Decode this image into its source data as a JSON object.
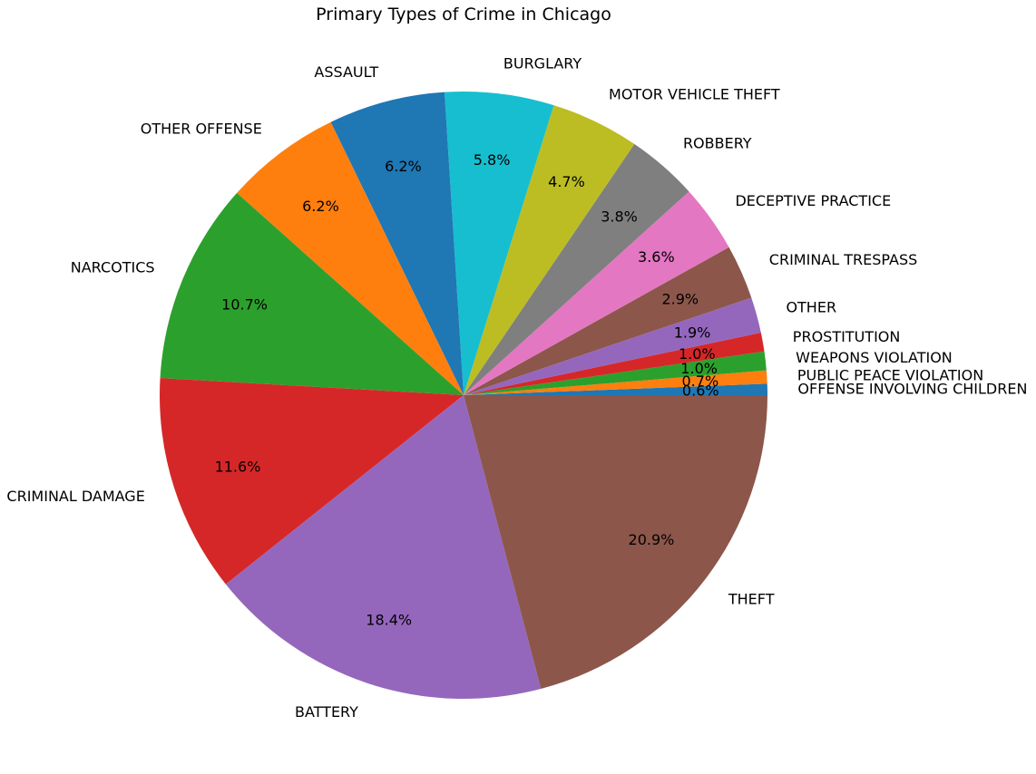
{
  "chart_data": {
    "type": "pie",
    "title": "Primary Types of Crime in Chicago",
    "start_angle_deg": 0,
    "direction": "counterclockwise",
    "slices": [
      {
        "label": "OFFENSE INVOLVING CHILDREN",
        "value": 0.6,
        "pct_label": "0.6%",
        "color": "#1f77b4"
      },
      {
        "label": "PUBLIC PEACE VIOLATION",
        "value": 0.7,
        "pct_label": "0.7%",
        "color": "#ff7f0e"
      },
      {
        "label": "WEAPONS VIOLATION",
        "value": 1.0,
        "pct_label": "1.0%",
        "color": "#2ca02c"
      },
      {
        "label": "PROSTITUTION",
        "value": 1.0,
        "pct_label": "1.0%",
        "color": "#d62728"
      },
      {
        "label": "OTHER",
        "value": 1.9,
        "pct_label": "1.9%",
        "color": "#9467bd"
      },
      {
        "label": "CRIMINAL TRESPASS",
        "value": 2.9,
        "pct_label": "2.9%",
        "color": "#8c564b"
      },
      {
        "label": "DECEPTIVE PRACTICE",
        "value": 3.6,
        "pct_label": "3.6%",
        "color": "#e377c2"
      },
      {
        "label": "ROBBERY",
        "value": 3.8,
        "pct_label": "3.8%",
        "color": "#7f7f7f"
      },
      {
        "label": "MOTOR VEHICLE THEFT",
        "value": 4.7,
        "pct_label": "4.7%",
        "color": "#bcbd22"
      },
      {
        "label": "BURGLARY",
        "value": 5.8,
        "pct_label": "5.8%",
        "color": "#17becf"
      },
      {
        "label": "ASSAULT",
        "value": 6.2,
        "pct_label": "6.2%",
        "color": "#1f77b4"
      },
      {
        "label": "OTHER OFFENSE",
        "value": 6.2,
        "pct_label": "6.2%",
        "color": "#ff7f0e"
      },
      {
        "label": "NARCOTICS",
        "value": 10.7,
        "pct_label": "10.7%",
        "color": "#2ca02c"
      },
      {
        "label": "CRIMINAL DAMAGE",
        "value": 11.6,
        "pct_label": "11.6%",
        "color": "#d62728"
      },
      {
        "label": "BATTERY",
        "value": 18.4,
        "pct_label": "18.4%",
        "color": "#9467bd"
      },
      {
        "label": "THEFT",
        "value": 20.9,
        "pct_label": "20.9%",
        "color": "#8c564b"
      }
    ]
  }
}
